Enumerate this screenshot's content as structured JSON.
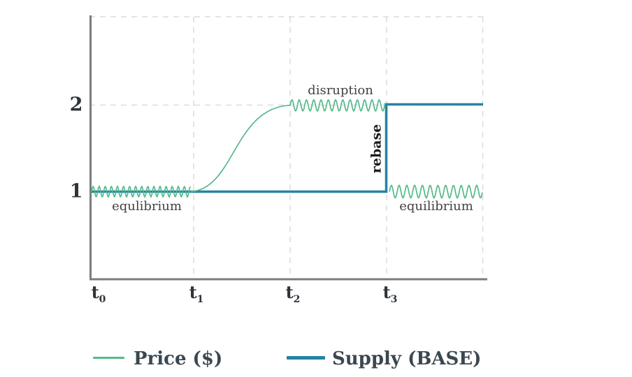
{
  "colors": {
    "price": "#55b98a",
    "supply": "#2583a4",
    "axis": "#7c7c7c",
    "grid": "#dcdcdc"
  },
  "axes": {
    "y_ticks": [
      {
        "label": "2"
      },
      {
        "label": "1"
      }
    ],
    "x_ticks": [
      {
        "base": "t",
        "sub": "0"
      },
      {
        "base": "t",
        "sub": "1"
      },
      {
        "base": "t",
        "sub": "2"
      },
      {
        "base": "t",
        "sub": "3"
      }
    ]
  },
  "annotations": {
    "equilibrium_left": "equlibrium",
    "disruption": "disruption",
    "rebase": "rebase",
    "equilibrium_right": "equilibrium"
  },
  "legend": {
    "items": [
      {
        "name": "price",
        "label": "Price ($)"
      },
      {
        "name": "supply",
        "label": "Supply (BASE)"
      }
    ]
  },
  "chart_data": {
    "type": "line",
    "title": "",
    "xlabel": "",
    "ylabel": "",
    "x_ticks": [
      "t0",
      "t1",
      "t2",
      "t3"
    ],
    "y_ticks": [
      1,
      2
    ],
    "ylim": [
      0,
      2.8
    ],
    "grid": "dashed",
    "legend_position": "bottom",
    "series": [
      {
        "name": "Price ($)",
        "color": "#55b98a",
        "line_style": "thin oscillating",
        "keyframes": [
          {
            "x": "t0",
            "y": 1
          },
          {
            "x": "t1",
            "y": 1
          },
          {
            "x": "t2",
            "y": 2
          },
          {
            "x": "t3 (just before)",
            "y": 2
          },
          {
            "x": "t3 (just after)",
            "y": 1
          },
          {
            "x": "end",
            "y": 1
          }
        ],
        "behavior": "oscillates around 1 from t0 to t1 (equlibrium), sigmoid rise from 1 to 2 between t1 and t2, oscillates around 2 from t2 to t3 (disruption), drops instantly back to 1 at t3 and oscillates around 1 to end (equilibrium)",
        "oscillation_amplitude": 0.07
      },
      {
        "name": "Supply (BASE)",
        "color": "#2583a4",
        "line_style": "thick step",
        "keyframes": [
          {
            "x": "t0",
            "y": 1
          },
          {
            "x": "t3",
            "y": 1
          },
          {
            "x": "t3",
            "y": 2
          },
          {
            "x": "end",
            "y": 2
          }
        ],
        "behavior": "flat at 1 until t3, vertical step up to 2 at t3 (labeled rebase), flat at 2 to end"
      }
    ],
    "annotations": [
      {
        "text": "equlibrium",
        "near": "t0-t1",
        "y": 1,
        "position": "below price wave"
      },
      {
        "text": "disruption",
        "near": "t2-t3",
        "y": 2,
        "position": "above price wave"
      },
      {
        "text": "rebase",
        "near": "t3",
        "rotation_deg": -90,
        "position": "left of supply step"
      },
      {
        "text": "equilibrium",
        "near": "t3-end",
        "y": 1,
        "position": "below price wave"
      }
    ]
  }
}
